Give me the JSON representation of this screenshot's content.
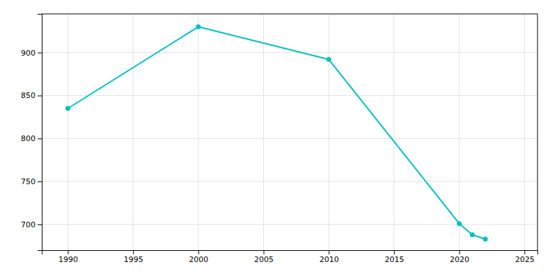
{
  "chart_data": {
    "type": "line",
    "x": [
      1990,
      2000,
      2010,
      2020,
      2021,
      2022
    ],
    "values": [
      835,
      930,
      892,
      701,
      688,
      683
    ],
    "color": "#00C0C0",
    "marker": "circle",
    "xlim": [
      1988,
      2026
    ],
    "ylim": [
      670,
      945
    ],
    "xticks": [
      1990,
      1995,
      2000,
      2005,
      2010,
      2015,
      2020,
      2025
    ],
    "yticks": [
      700,
      750,
      800,
      850,
      900
    ],
    "grid": true
  }
}
